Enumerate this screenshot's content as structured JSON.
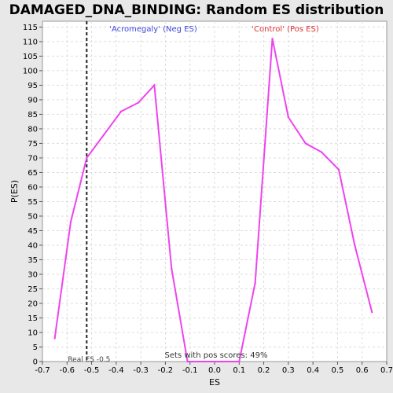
{
  "chart_data": {
    "type": "line",
    "title": "DAMAGED_DNA_BINDING: Random ES distribution",
    "xlabel": "ES",
    "ylabel": "P(ES)",
    "xlim": [
      -0.7,
      0.7
    ],
    "ylim": [
      0,
      117
    ],
    "x_ticks": [
      -0.7,
      -0.6,
      -0.5,
      -0.4,
      -0.3,
      -0.2,
      -0.1,
      0.0,
      0.1,
      0.2,
      0.3,
      0.4,
      0.5,
      0.6,
      0.7
    ],
    "x_tick_labels": [
      "-0.7",
      "-0.6",
      "-0.5",
      "-0.4",
      "-0.3",
      "-0.2",
      "-0.1",
      "0.0",
      "0.1",
      "0.2",
      "0.3",
      "0.4",
      "0.5",
      "0.6",
      "0.7"
    ],
    "y_ticks": [
      0,
      5,
      10,
      15,
      20,
      25,
      30,
      35,
      40,
      45,
      50,
      55,
      60,
      65,
      70,
      75,
      80,
      85,
      90,
      95,
      100,
      105,
      110,
      115
    ],
    "grid": true,
    "series": [
      {
        "color": "#ee44ee",
        "x": [
          -0.65,
          -0.585,
          -0.52,
          -0.45,
          -0.38,
          -0.31,
          -0.245,
          -0.175,
          -0.11,
          -0.04,
          0.03,
          0.1,
          0.165,
          0.235,
          0.3,
          0.37,
          0.435,
          0.505,
          0.57,
          0.64
        ],
        "y": [
          8,
          48,
          70,
          78,
          86,
          89,
          95,
          32,
          0,
          0,
          0,
          0,
          27,
          111,
          84,
          75,
          72,
          66,
          40,
          17
        ]
      }
    ],
    "real_es": {
      "x": -0.52,
      "label": "Real ES -0.5"
    },
    "annotations": {
      "neg": "'Acromegaly' (Neg ES)",
      "pos": "'Control' (Pos ES)",
      "sets": "Sets with pos scores: 49%"
    }
  }
}
